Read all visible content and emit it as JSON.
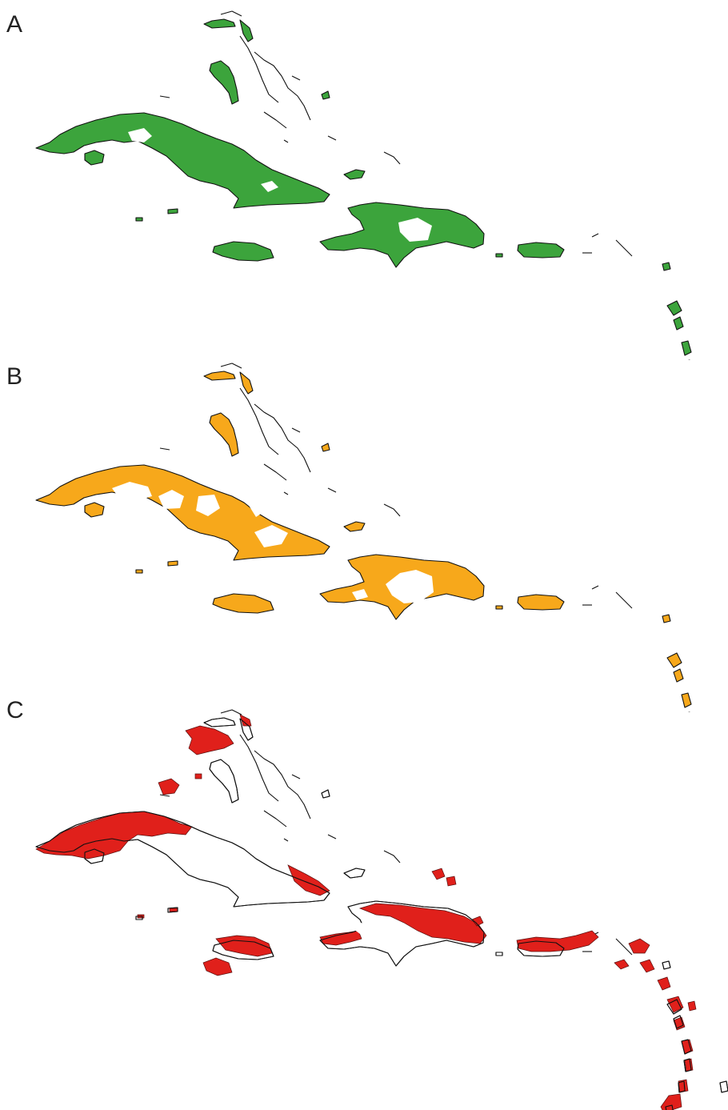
{
  "figure": {
    "panels": [
      {
        "id": "A",
        "label": "A",
        "fill_color": "#3ca43c",
        "coverage": "full"
      },
      {
        "id": "B",
        "label": "B",
        "fill_color": "#f7a81b",
        "coverage": "partial"
      },
      {
        "id": "C",
        "label": "C",
        "fill_color": "#e0201b",
        "coverage": "fragmented"
      }
    ],
    "outline_color": "#111111",
    "background": "#ffffff"
  }
}
